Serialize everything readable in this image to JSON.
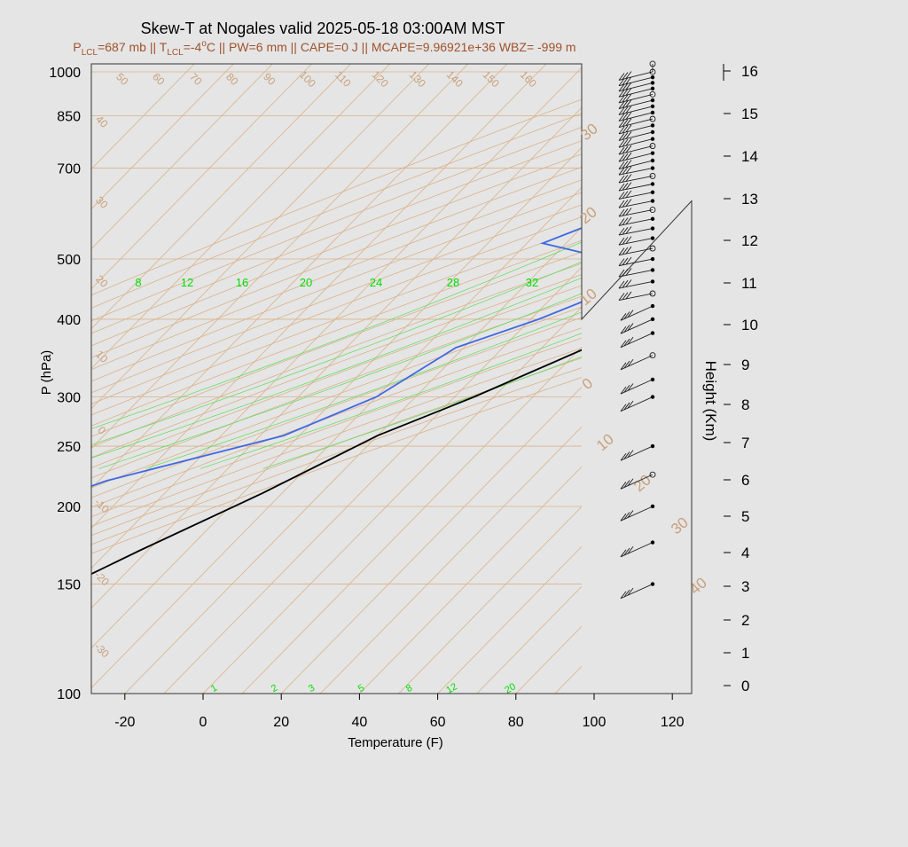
{
  "chart_data": {
    "type": "line",
    "title": "Skew-T at Nogales valid 2025-05-18 03:00AM MST",
    "subtitle_parts": {
      "plcl_label": "P",
      "plcl_sub": "LCL",
      "plcl_value": "=687 mb || ",
      "tlcl_label": "T",
      "tlcl_sub": "LCL",
      "tlcl_value": "=-4",
      "deg": "o",
      "tail": "C || PW=6 mm || CAPE=0 J || MCAPE=9.96921e+36 WBZ= -999 m"
    },
    "xlabel": "Temperature (F)",
    "ylabel": "P (hPa)",
    "y2label": "Height (Km)",
    "xlim": [
      -28,
      125
    ],
    "ylim": [
      1030,
      100
    ],
    "x_ticks": [
      "-20",
      "0",
      "20",
      "40",
      "60",
      "80",
      "100",
      "120"
    ],
    "p_ticks": [
      "100",
      "150",
      "200",
      "250",
      "300",
      "400",
      "500",
      "700",
      "850",
      "1000"
    ],
    "height_ticks": [
      "0",
      "1",
      "2",
      "3",
      "4",
      "5",
      "6",
      "7",
      "8",
      "9",
      "10",
      "11",
      "12",
      "13",
      "14",
      "15",
      "16"
    ],
    "mixing_ratio_labels": [
      "8",
      "12",
      "16",
      "20",
      "24",
      "28",
      "32"
    ],
    "mixing_ratio_bottom_labels": [
      "1",
      "2",
      "3",
      "5",
      "8",
      "12",
      "20"
    ],
    "skewed_isotherm_labels_top": [
      "50",
      "60",
      "70",
      "80",
      "90",
      "100",
      "110",
      "120",
      "130",
      "140",
      "150",
      "160"
    ],
    "skewed_isotherm_labels_left": [
      "40",
      "30",
      "20",
      "10",
      "0",
      "-10",
      "-20",
      "-30"
    ],
    "adiabat_labels_right": [
      "30",
      "20",
      "10",
      "0",
      "10",
      "20",
      "30",
      "40"
    ],
    "series": [
      {
        "name": "temperature",
        "color": "#000000",
        "points": [
          {
            "p": 860,
            "t": 67
          },
          {
            "p": 820,
            "t": 72
          },
          {
            "p": 780,
            "t": 71
          },
          {
            "p": 700,
            "t": 67
          },
          {
            "p": 660,
            "t": 61
          },
          {
            "p": 600,
            "t": 53
          },
          {
            "p": 500,
            "t": 40
          },
          {
            "p": 430,
            "t": 28
          },
          {
            "p": 370,
            "t": 14
          },
          {
            "p": 300,
            "t": -5
          },
          {
            "p": 260,
            "t": -20
          },
          {
            "p": 210,
            "t": -35
          },
          {
            "p": 170,
            "t": -52
          },
          {
            "p": 130,
            "t": -72
          },
          {
            "p": 100,
            "t": -88
          }
        ]
      },
      {
        "name": "dewpoint",
        "color": "#4169e1",
        "points": [
          {
            "p": 860,
            "t": 42
          },
          {
            "p": 840,
            "t": 22
          },
          {
            "p": 800,
            "t": 6
          },
          {
            "p": 760,
            "t": -6
          },
          {
            "p": 740,
            "t": -6
          },
          {
            "p": 700,
            "t": 12
          },
          {
            "p": 660,
            "t": 23
          },
          {
            "p": 620,
            "t": 24
          },
          {
            "p": 590,
            "t": 15
          },
          {
            "p": 560,
            "t": -20
          },
          {
            "p": 530,
            "t": -26
          },
          {
            "p": 500,
            "t": -5
          },
          {
            "p": 440,
            "t": 2
          },
          {
            "p": 400,
            "t": -8
          },
          {
            "p": 360,
            "t": -22
          },
          {
            "p": 300,
            "t": -30
          },
          {
            "p": 260,
            "t": -44
          },
          {
            "p": 220,
            "t": -78
          },
          {
            "p": 180,
            "t": -104
          },
          {
            "p": 125,
            "t": -122
          },
          {
            "p": 100,
            "t": -130
          }
        ]
      }
    ],
    "barb_pressures": [
      1000,
      980,
      960,
      940,
      920,
      900,
      880,
      860,
      840,
      820,
      800,
      780,
      760,
      740,
      720,
      700,
      680,
      660,
      640,
      620,
      600,
      580,
      560,
      540,
      520,
      500,
      480,
      460,
      440,
      420,
      400,
      380,
      350,
      320,
      300,
      250,
      225,
      200,
      175,
      150
    ],
    "colors": {
      "background": "#e5e5e5",
      "isotherm": "#d9b28a",
      "label_tan": "#c8a07a",
      "mixing": "#00ee00",
      "subtitle": "#a0522d"
    }
  }
}
